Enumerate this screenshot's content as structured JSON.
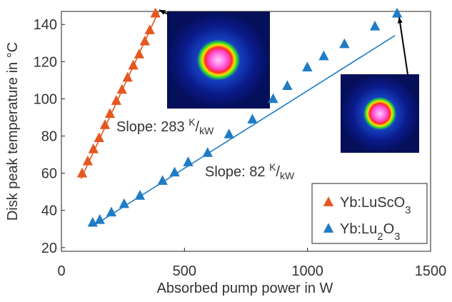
{
  "chart_data": {
    "type": "scatter",
    "xlabel": "Absorbed pump power in W",
    "ylabel": "Disk peak temperature in °C",
    "xlim": [
      0,
      1500
    ],
    "xticks": [
      0,
      500,
      1000,
      1500
    ],
    "ylim": [
      18,
      147
    ],
    "yticks": [
      20,
      40,
      60,
      80,
      100,
      120,
      140
    ],
    "legend": "lower right",
    "series": [
      {
        "name": "Yb:LuScO3",
        "color": "#e5571e",
        "x": [
          84,
          107,
          130,
          153,
          177,
          197,
          223,
          246,
          269,
          292,
          316,
          339,
          359,
          382
        ],
        "values": [
          60,
          66.5,
          73,
          79,
          86,
          92,
          99,
          105,
          111.5,
          118,
          124,
          131,
          137,
          146
        ],
        "fit": {
          "x": [
            80,
            395
          ],
          "values": [
            57,
            147
          ]
        }
      },
      {
        "name": "Yb:Lu2O3",
        "color": "#1f7cc6",
        "x": [
          127,
          156,
          203,
          255,
          319,
          411,
          460,
          515,
          594,
          681,
          776,
          860,
          918,
          999,
          1066,
          1150,
          1274,
          1364
        ],
        "values": [
          33.5,
          35,
          39,
          43.5,
          48,
          56,
          60.5,
          66,
          71,
          81,
          89,
          100,
          107,
          117,
          123,
          129.5,
          139,
          146
        ],
        "fit": {
          "x": [
            127,
            1355
          ],
          "values": [
            31.5,
            134
          ]
        }
      }
    ],
    "annotations": [
      {
        "text": "Slope: 283 ",
        "sup": "K",
        "sep": "/",
        "sub": "kW"
      },
      {
        "text": "Slope: 82 ",
        "sup": "K",
        "sep": "/",
        "sub": "kW"
      }
    ]
  }
}
